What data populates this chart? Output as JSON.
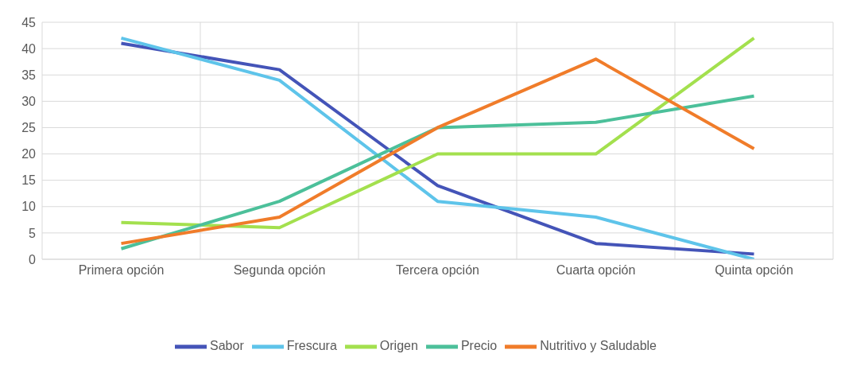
{
  "chart_data": {
    "type": "line",
    "categories": [
      "Primera opción",
      "Segunda opción",
      "Tercera opción",
      "Cuarta opción",
      "Quinta opción"
    ],
    "series": [
      {
        "name": "Sabor",
        "color": "#4454b8",
        "values": [
          41,
          36,
          14,
          3,
          1
        ]
      },
      {
        "name": "Frescura",
        "color": "#5ec4ea",
        "values": [
          42,
          34,
          11,
          8,
          0
        ]
      },
      {
        "name": "Origen",
        "color": "#a3e04e",
        "values": [
          7,
          6,
          20,
          20,
          42
        ]
      },
      {
        "name": "Precio",
        "color": "#4cc09a",
        "values": [
          2,
          11,
          25,
          26,
          31
        ]
      },
      {
        "name": "Nutritivo y Saludable",
        "color": "#f07c2a",
        "values": [
          3,
          8,
          25,
          38,
          21
        ]
      }
    ],
    "ylim": [
      0,
      45
    ],
    "yticks": [
      0,
      5,
      10,
      15,
      20,
      25,
      30,
      35,
      40,
      45
    ],
    "grid": true,
    "legend": "bottom",
    "marker": "none",
    "line_style": "solid"
  }
}
